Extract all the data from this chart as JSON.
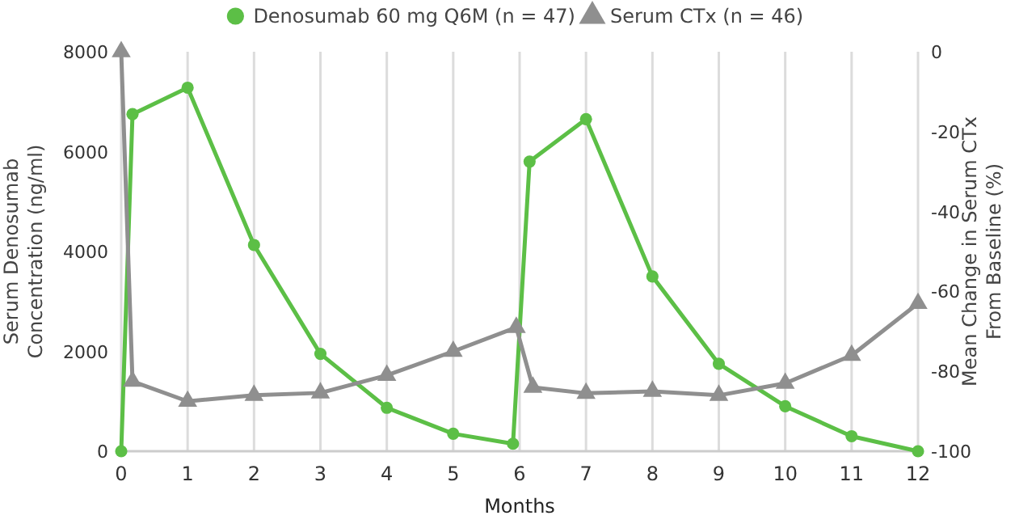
{
  "chart_data": {
    "type": "line",
    "xlabel": "Months",
    "ylabel": "Serum Denosumab Concentration (ng/ml)",
    "y2label": "Mean Change in Serum CTx From Baseline (%)",
    "xlim": [
      0,
      12
    ],
    "xticks": [
      0,
      1,
      2,
      3,
      4,
      5,
      6,
      7,
      8,
      9,
      10,
      11,
      12
    ],
    "ylim": [
      0,
      8000
    ],
    "yticks": [
      0,
      2000,
      4000,
      6000,
      8000
    ],
    "y2lim": [
      -100,
      0
    ],
    "y2ticks": [
      -100,
      -80,
      -60,
      -40,
      -20,
      0
    ],
    "grid": "x",
    "legend": "top",
    "series": [
      {
        "name": "Denosumab 60 mg Q6M (n = 47)",
        "color": "#5cbf46",
        "marker": "circle",
        "x": [
          0,
          0.17,
          1,
          2,
          3,
          4,
          5,
          5.9,
          6.15,
          7,
          8,
          9,
          10,
          11,
          12
        ],
        "values": [
          0,
          6750,
          7280,
          4130,
          1950,
          870,
          350,
          150,
          5800,
          6650,
          3500,
          1750,
          900,
          300,
          0
        ]
      },
      {
        "name": "Serum CTx (n = 46)",
        "color": "#8f8f8f",
        "marker": "triangle",
        "axis": "y2",
        "x": [
          0,
          0.17,
          1,
          2,
          3,
          4,
          5,
          5.95,
          6.2,
          7,
          8,
          9,
          10,
          11,
          12
        ],
        "values": [
          0,
          -82.5,
          -87.5,
          -86,
          -85.4,
          -81,
          -75,
          -69,
          -84,
          -85.5,
          -85,
          -86,
          -83,
          -76,
          -63
        ]
      }
    ]
  }
}
